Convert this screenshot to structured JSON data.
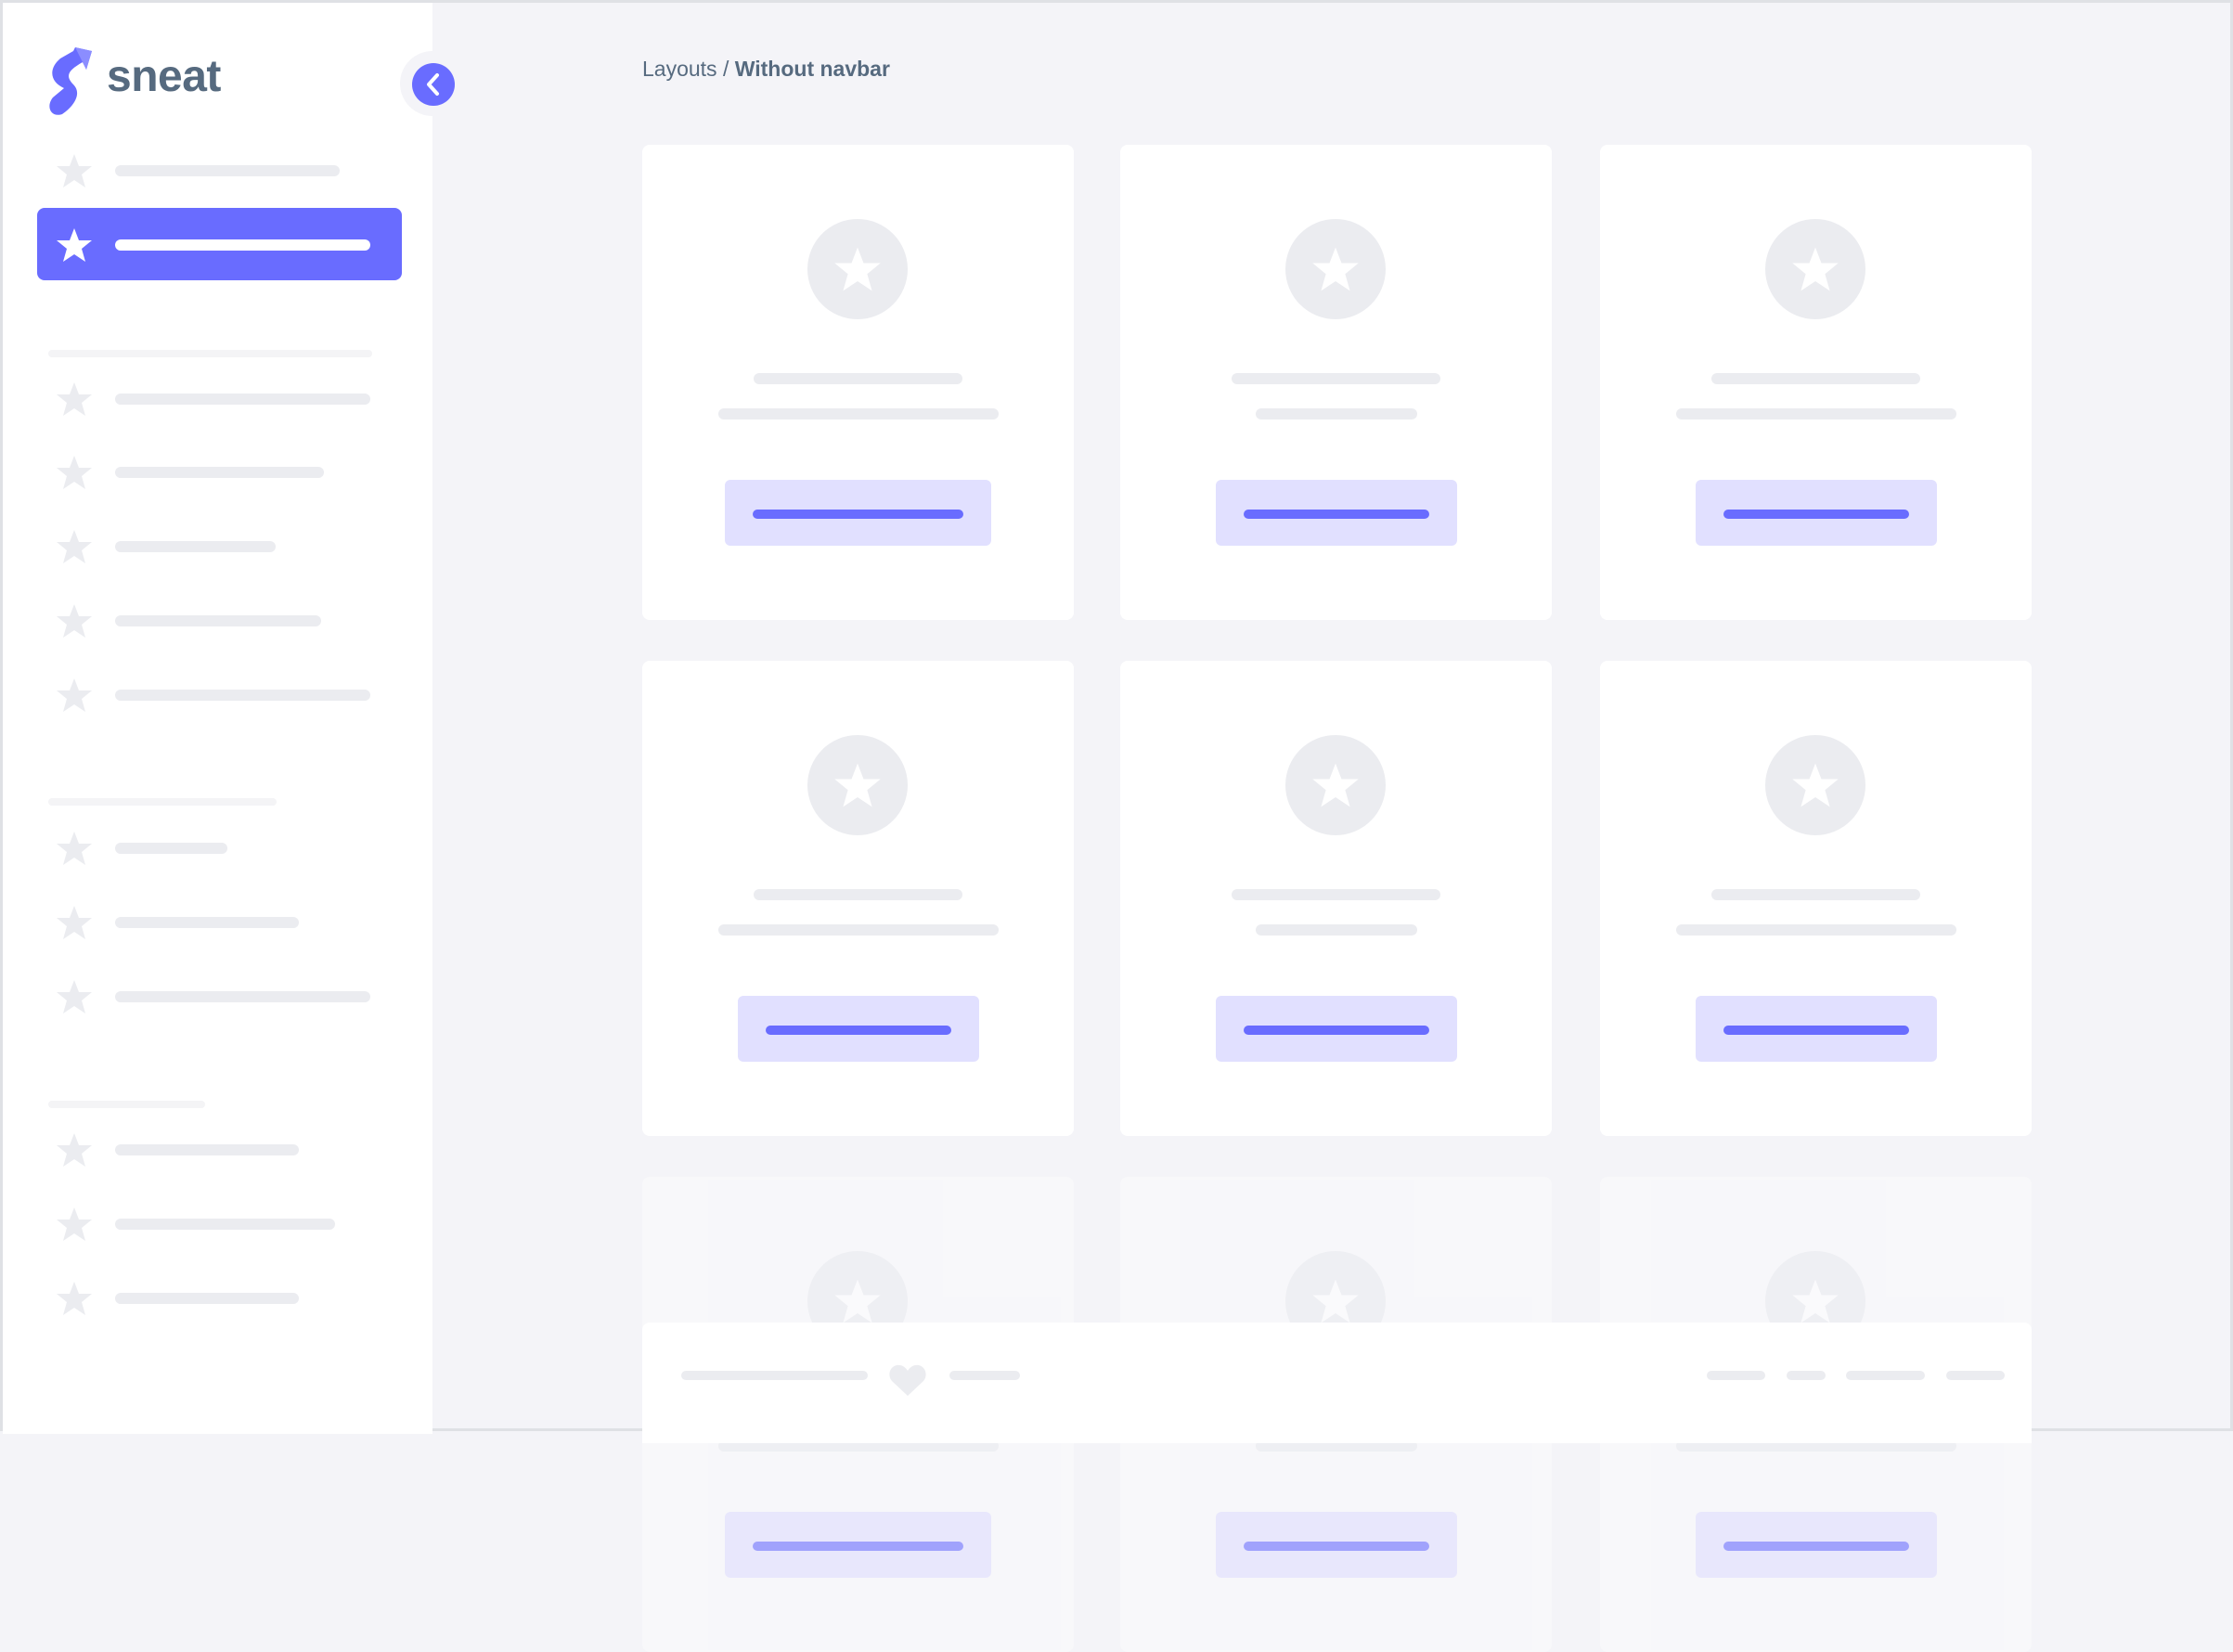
{
  "brand": {
    "name": "sneat",
    "logo_color": "#696cff"
  },
  "breadcrumb": {
    "parent": "Layouts",
    "separator": "/",
    "current": "Without navbar"
  },
  "colors": {
    "accent": "#696cff",
    "accent_light": "#e1e0ff",
    "skeleton": "#ebecf0",
    "background": "#f4f4f8"
  },
  "sidebar": {
    "active_index": 1,
    "collapse_icon": "chevron-left-icon"
  },
  "footer": {
    "icon": "heart-icon"
  }
}
